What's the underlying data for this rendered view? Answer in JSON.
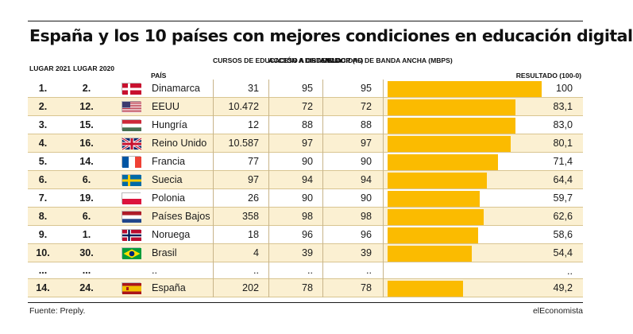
{
  "title": "España y los 10 países con mejores condiciones en educación digital",
  "headers": {
    "lugar2021": "LUGAR 2021",
    "lugar2020": "LUGAR 2020",
    "pais": "PAÍS",
    "cursos": "CURSOS DE EDUCACIÓN A DISTANCIA",
    "acceso": "ACCESO A ORDENADOR (%)",
    "velocidad": "VELOCIDAD DE BANDA ANCHA (MBPS)",
    "resultado": "RESULTADO (100-0)"
  },
  "footer": {
    "source": "Fuente: Preply.",
    "brand": "elEconomista"
  },
  "colors": {
    "bar": "#fbbb00",
    "shaded_row": "#fbf0d2"
  },
  "chart_data": {
    "type": "table",
    "title": "España y los 10 países con mejores condiciones en educación digital",
    "columns": [
      "LUGAR 2021",
      "LUGAR 2020",
      "PAÍS",
      "CURSOS DE EDUCACIÓN A DISTANCIA",
      "ACCESO A ORDENADOR (%)",
      "VELOCIDAD DE BANDA ANCHA (MBPS)",
      "RESULTADO (100-0)"
    ],
    "bar_max": 100,
    "rows": [
      {
        "rank2021": "1.",
        "rank2020": "2.",
        "country": "Dinamarca",
        "flag": "denmark-flag",
        "courses": "31",
        "access": "95",
        "speed": "95",
        "result": 100,
        "result_label": "100",
        "shaded": false
      },
      {
        "rank2021": "2.",
        "rank2020": "12.",
        "country": "EEUU",
        "flag": "usa-flag",
        "courses": "10.472",
        "access": "72",
        "speed": "72",
        "result": 83.1,
        "result_label": "83,1",
        "shaded": true
      },
      {
        "rank2021": "3.",
        "rank2020": "15.",
        "country": "Hungría",
        "flag": "hungary-flag",
        "courses": "12",
        "access": "88",
        "speed": "88",
        "result": 83.0,
        "result_label": "83,0",
        "shaded": false
      },
      {
        "rank2021": "4.",
        "rank2020": "16.",
        "country": "Reino Unido",
        "flag": "uk-flag",
        "courses": "10.587",
        "access": "97",
        "speed": "97",
        "result": 80.1,
        "result_label": "80,1",
        "shaded": true
      },
      {
        "rank2021": "5.",
        "rank2020": "14.",
        "country": "Francia",
        "flag": "france-flag",
        "courses": "77",
        "access": "90",
        "speed": "90",
        "result": 71.4,
        "result_label": "71,4",
        "shaded": false
      },
      {
        "rank2021": "6.",
        "rank2020": "6.",
        "country": "Suecia",
        "flag": "sweden-flag",
        "courses": "97",
        "access": "94",
        "speed": "94",
        "result": 64.4,
        "result_label": "64,4",
        "shaded": true
      },
      {
        "rank2021": "7.",
        "rank2020": "19.",
        "country": "Polonia",
        "flag": "poland-flag",
        "courses": "26",
        "access": "90",
        "speed": "90",
        "result": 59.7,
        "result_label": "59,7",
        "shaded": false
      },
      {
        "rank2021": "8.",
        "rank2020": "6.",
        "country": "Países Bajos",
        "flag": "netherlands-flag",
        "courses": "358",
        "access": "98",
        "speed": "98",
        "result": 62.6,
        "result_label": "62,6",
        "shaded": true
      },
      {
        "rank2021": "9.",
        "rank2020": "1.",
        "country": "Noruega",
        "flag": "norway-flag",
        "courses": "18",
        "access": "96",
        "speed": "96",
        "result": 58.6,
        "result_label": "58,6",
        "shaded": false
      },
      {
        "rank2021": "10.",
        "rank2020": "30.",
        "country": "Brasil",
        "flag": "brazil-flag",
        "courses": "4",
        "access": "39",
        "speed": "39",
        "result": 54.4,
        "result_label": "54,4",
        "shaded": true
      },
      {
        "rank2021": "...",
        "rank2020": "...",
        "country": "..",
        "flag": "",
        "courses": "..",
        "access": "..",
        "speed": "..",
        "result": null,
        "result_label": "..",
        "shaded": false,
        "ellipsis": true
      },
      {
        "rank2021": "14.",
        "rank2020": "24.",
        "country": "España",
        "flag": "spain-flag",
        "courses": "202",
        "access": "78",
        "speed": "78",
        "result": 49.2,
        "result_label": "49,2",
        "shaded": true
      }
    ]
  }
}
